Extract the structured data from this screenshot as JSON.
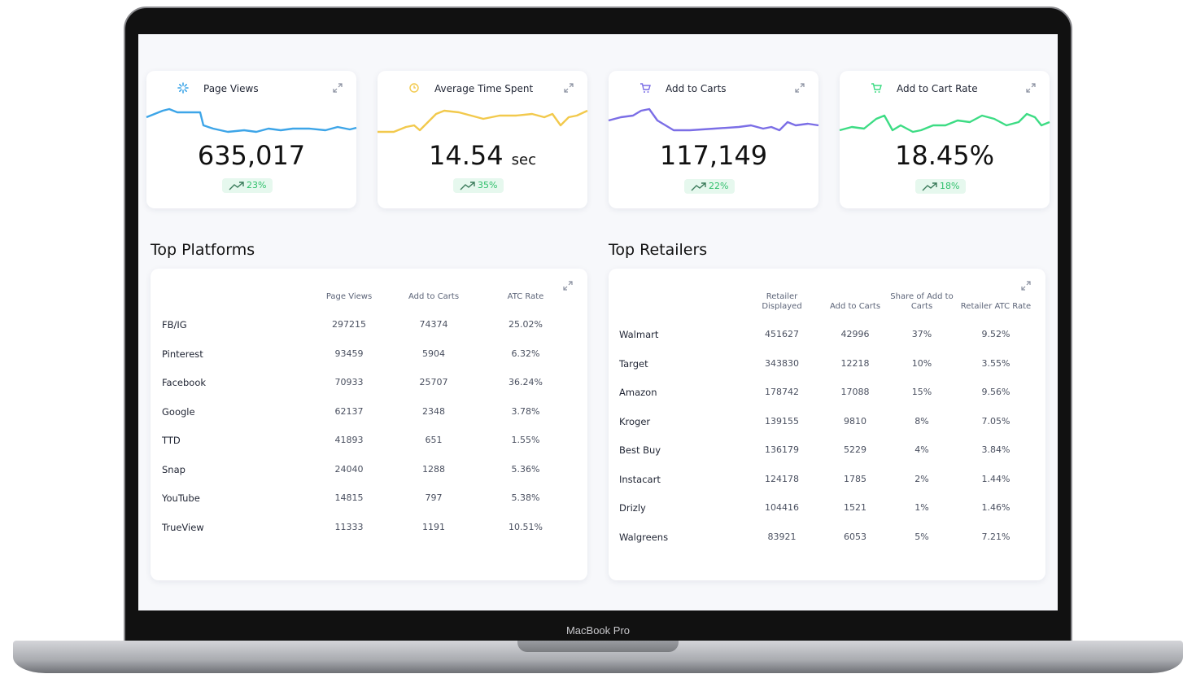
{
  "device_label": "MacBook Pro",
  "kpis": [
    {
      "title": "Page Views",
      "value": "635,017",
      "change": "23%"
    },
    {
      "title": "Average Time Spent",
      "value": "14.54",
      "unit": "sec",
      "change": "35%"
    },
    {
      "title": "Add to Carts",
      "value": "117,149",
      "change": "22%"
    },
    {
      "title": "Add to Cart Rate",
      "value": "18.45%",
      "change": "18%"
    }
  ],
  "platforms": {
    "title": "Top Platforms",
    "columns": [
      "Page Views",
      "Add to Carts",
      "ATC Rate"
    ],
    "rows": [
      [
        "FB/IG",
        "297215",
        "74374",
        "25.02%"
      ],
      [
        "Pinterest",
        "93459",
        "5904",
        "6.32%"
      ],
      [
        "Facebook",
        "70933",
        "25707",
        "36.24%"
      ],
      [
        "Google",
        "62137",
        "2348",
        "3.78%"
      ],
      [
        "TTD",
        "41893",
        "651",
        "1.55%"
      ],
      [
        "Snap",
        "24040",
        "1288",
        "5.36%"
      ],
      [
        "YouTube",
        "14815",
        "797",
        "5.38%"
      ],
      [
        "TrueView",
        "11333",
        "1191",
        "10.51%"
      ]
    ]
  },
  "retailers": {
    "title": "Top Retailers",
    "columns": [
      "Retailer Displayed",
      "Add to Carts",
      "Share of Add to Carts",
      "Retailer ATC Rate"
    ],
    "rows": [
      [
        "Walmart",
        "451627",
        "42996",
        "37%",
        "9.52%"
      ],
      [
        "Target",
        "343830",
        "12218",
        "10%",
        "3.55%"
      ],
      [
        "Amazon",
        "178742",
        "17088",
        "15%",
        "9.56%"
      ],
      [
        "Kroger",
        "139155",
        "9810",
        "8%",
        "7.05%"
      ],
      [
        "Best Buy",
        "136179",
        "5229",
        "4%",
        "3.84%"
      ],
      [
        "Instacart",
        "124178",
        "1785",
        "2%",
        "1.44%"
      ],
      [
        "Drizly",
        "104416",
        "1521",
        "1%",
        "1.46%"
      ],
      [
        "Walgreens",
        "83921",
        "6053",
        "5%",
        "7.21%"
      ]
    ]
  }
}
